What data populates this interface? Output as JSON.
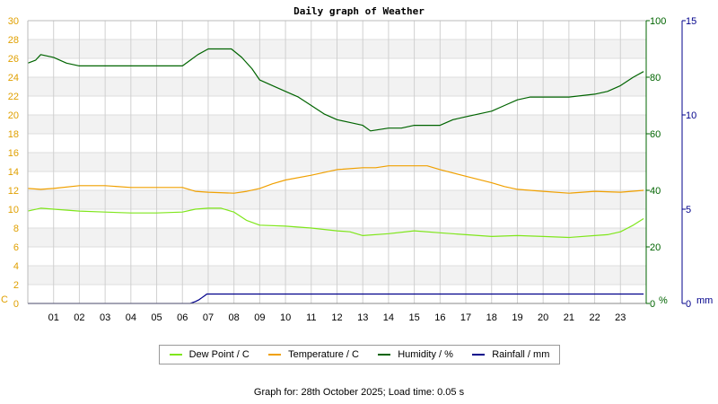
{
  "chart_data": {
    "type": "line",
    "title": "Daily graph of Weather",
    "x_tick_labels": [
      "01",
      "02",
      "03",
      "04",
      "05",
      "06",
      "07",
      "08",
      "09",
      "10",
      "11",
      "12",
      "13",
      "14",
      "15",
      "16",
      "17",
      "18",
      "19",
      "20",
      "21",
      "22",
      "23"
    ],
    "xlim": [
      0,
      24
    ],
    "y_axes": [
      {
        "id": "c",
        "unit_label": "C",
        "ylim": [
          0,
          30
        ],
        "ticks": [
          0,
          2,
          4,
          6,
          8,
          10,
          12,
          14,
          16,
          18,
          20,
          22,
          24,
          26,
          28,
          30
        ],
        "color": "#e0a000",
        "side": "left"
      },
      {
        "id": "pct",
        "unit_label": "%",
        "ylim": [
          0,
          100
        ],
        "ticks": [
          0,
          20,
          40,
          60,
          80,
          100
        ],
        "color": "#006400",
        "side": "right"
      },
      {
        "id": "mm",
        "unit_label": "mm",
        "ylim": [
          0,
          15
        ],
        "ticks": [
          0,
          5,
          10,
          15
        ],
        "color": "#00008b",
        "side": "right"
      }
    ],
    "grid": true,
    "legend_position": "bottom",
    "series": [
      {
        "name": "Dew Point / C",
        "axis": "c",
        "color": "#7fe61b",
        "x": [
          0,
          0.5,
          1,
          2,
          3,
          4,
          5,
          6,
          6.5,
          7,
          7.5,
          8,
          8.5,
          9,
          10,
          11,
          12,
          12.5,
          13,
          14,
          15,
          16,
          17,
          18,
          19,
          20,
          21,
          22,
          22.5,
          23,
          23.5,
          23.9
        ],
        "y": [
          9.8,
          10.1,
          10,
          9.8,
          9.7,
          9.6,
          9.6,
          9.7,
          10,
          10.1,
          10.1,
          9.7,
          8.8,
          8.3,
          8.2,
          8,
          7.7,
          7.6,
          7.2,
          7.4,
          7.7,
          7.5,
          7.3,
          7.1,
          7.2,
          7.1,
          7,
          7.2,
          7.3,
          7.6,
          8.3,
          9
        ]
      },
      {
        "name": "Temperature / C",
        "axis": "c",
        "color": "#f0a000",
        "x": [
          0,
          0.5,
          1,
          2,
          3,
          4,
          5,
          6,
          6.5,
          7,
          8,
          8.5,
          9,
          9.5,
          10,
          11,
          12,
          13,
          13.5,
          14,
          15,
          15.5,
          16,
          17,
          18,
          18.5,
          19,
          20,
          21,
          22,
          23,
          23.9
        ],
        "y": [
          12.2,
          12.1,
          12.2,
          12.5,
          12.5,
          12.3,
          12.3,
          12.3,
          11.9,
          11.8,
          11.7,
          11.9,
          12.2,
          12.7,
          13.1,
          13.6,
          14.2,
          14.4,
          14.4,
          14.6,
          14.6,
          14.6,
          14.2,
          13.5,
          12.8,
          12.4,
          12.1,
          11.9,
          11.7,
          11.9,
          11.8,
          12
        ]
      },
      {
        "name": "Humidity / %",
        "axis": "pct",
        "color": "#006400",
        "x": [
          0,
          0.3,
          0.5,
          1,
          1.5,
          2,
          3,
          4,
          4.5,
          5,
          6,
          6.3,
          6.6,
          7,
          7.5,
          7.9,
          8.3,
          8.7,
          9,
          9.5,
          10,
          10.5,
          11,
          11.5,
          12,
          12.5,
          13,
          13.3,
          14,
          14.5,
          15,
          15.5,
          16,
          16.5,
          17,
          17.5,
          18,
          18.5,
          19,
          19.5,
          20,
          21,
          22,
          22.5,
          23,
          23.5,
          23.9
        ],
        "y": [
          85,
          86,
          88,
          87,
          85,
          84,
          84,
          84,
          84,
          84,
          84,
          86,
          88,
          90,
          90,
          90,
          87,
          83,
          79,
          77,
          75,
          73,
          70,
          67,
          65,
          64,
          63,
          61,
          62,
          62,
          63,
          63,
          63,
          65,
          66,
          67,
          68,
          70,
          72,
          73,
          73,
          73,
          74,
          75,
          77,
          80,
          82
        ]
      },
      {
        "name": "Rainfall / mm",
        "axis": "mm",
        "color": "#00008b",
        "x": [
          0,
          6.3,
          6.5,
          6.65,
          6.7,
          6.75,
          6.85,
          6.95,
          7,
          7.5,
          8,
          10,
          12,
          14,
          16,
          18,
          20,
          22,
          23.9
        ],
        "y": [
          0,
          0,
          0.1,
          0.2,
          0.25,
          0.3,
          0.4,
          0.5,
          0.5,
          0.5,
          0.5,
          0.5,
          0.5,
          0.5,
          0.5,
          0.5,
          0.5,
          0.5,
          0.5
        ]
      }
    ]
  },
  "footer": "Graph for: 28th October 2025; Load time: 0.05 s"
}
